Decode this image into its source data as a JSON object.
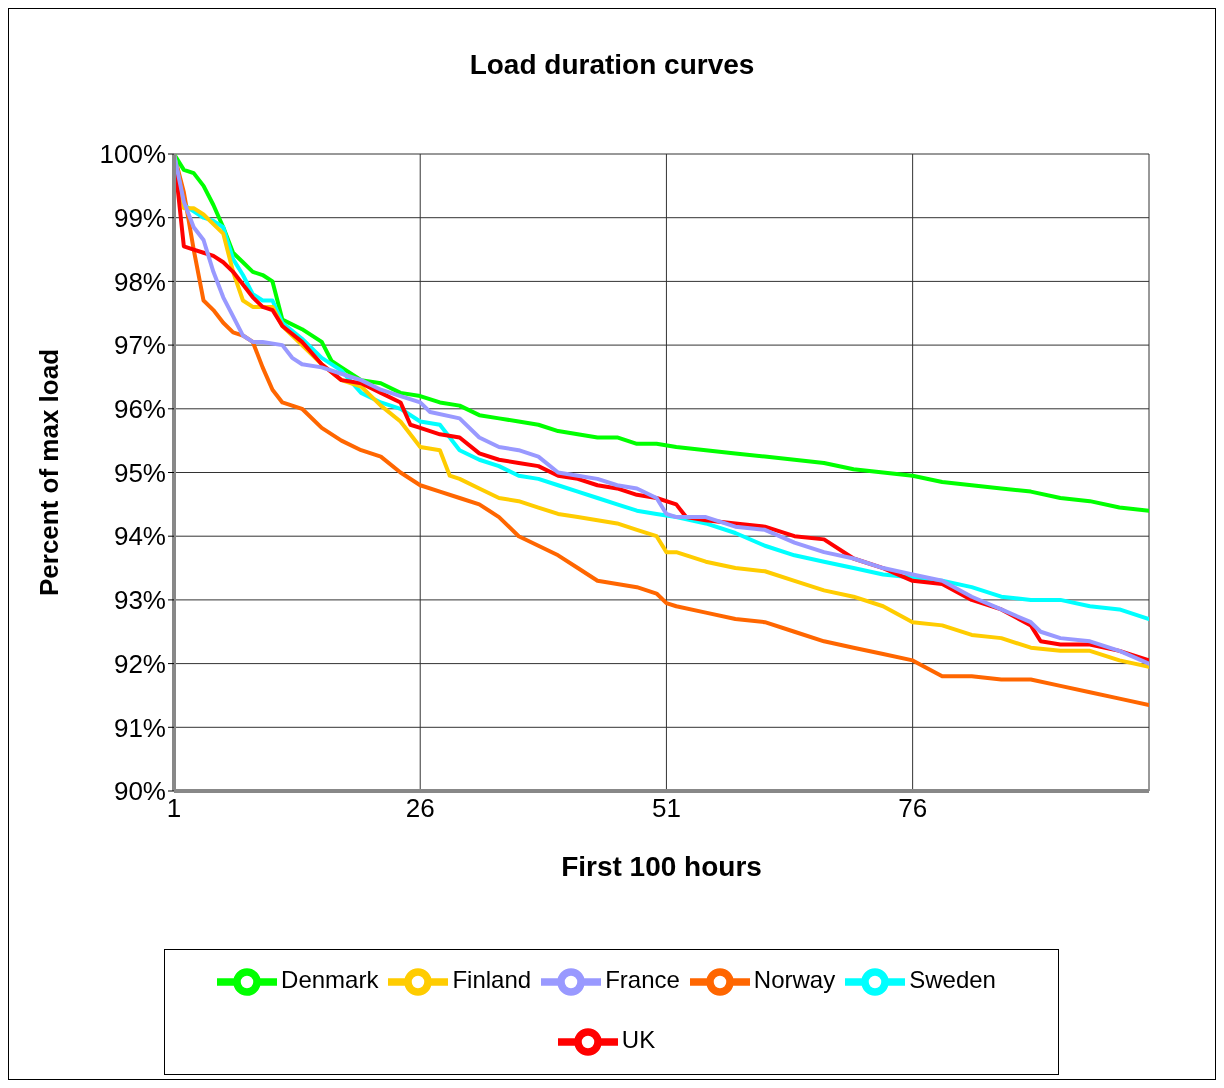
{
  "chart_data": {
    "type": "line",
    "title": "Load duration curves",
    "xlabel": "First 100 hours",
    "ylabel": "Percent of max load",
    "xlim": [
      1,
      100
    ],
    "xticks": [
      1,
      26,
      51,
      76
    ],
    "ylim": [
      90,
      100
    ],
    "yticks": [
      {
        "value": 90,
        "label": "90%"
      },
      {
        "value": 91,
        "label": "91%"
      },
      {
        "value": 92,
        "label": "92%"
      },
      {
        "value": 93,
        "label": "93%"
      },
      {
        "value": 94,
        "label": "94%"
      },
      {
        "value": 95,
        "label": "95%"
      },
      {
        "value": 96,
        "label": "96%"
      },
      {
        "value": 97,
        "label": "97%"
      },
      {
        "value": 98,
        "label": "98%"
      },
      {
        "value": 99,
        "label": "99%"
      },
      {
        "value": 100,
        "label": "100%"
      }
    ],
    "grid": true,
    "legend": "bottom",
    "marker": "none",
    "line_style": "solid",
    "series": [
      {
        "name": "Norway",
        "color": "#ff6600",
        "x": [
          1,
          2,
          3,
          4,
          5,
          6,
          7,
          8,
          9,
          10,
          11,
          12,
          14,
          16,
          18,
          20,
          22,
          24,
          26,
          28,
          30,
          32,
          34,
          36,
          38,
          40,
          42,
          44,
          46,
          48,
          50,
          51,
          52,
          55,
          58,
          61,
          64,
          67,
          70,
          73,
          76,
          79,
          82,
          85,
          88,
          91,
          94,
          97,
          100
        ],
        "values": [
          100,
          99.4,
          98.5,
          97.7,
          97.55,
          97.35,
          97.2,
          97.15,
          97.05,
          96.65,
          96.3,
          96.1,
          96.0,
          95.7,
          95.5,
          95.35,
          95.25,
          95.0,
          94.8,
          94.7,
          94.6,
          94.5,
          94.3,
          94.0,
          93.85,
          93.7,
          93.5,
          93.3,
          93.25,
          93.2,
          93.1,
          92.95,
          92.9,
          92.8,
          92.7,
          92.65,
          92.5,
          92.35,
          92.25,
          92.15,
          92.05,
          91.8,
          91.8,
          91.75,
          91.75,
          91.65,
          91.55,
          91.45,
          91.35
        ]
      },
      {
        "name": "Denmark",
        "color": "#00ff00",
        "x": [
          1,
          2,
          3,
          4,
          5,
          6,
          7,
          8,
          9,
          10,
          11,
          12,
          14,
          16,
          17,
          18,
          20,
          22,
          24,
          26,
          28,
          30,
          32,
          34,
          36,
          38,
          40,
          42,
          44,
          46,
          48,
          50,
          52,
          55,
          58,
          61,
          64,
          67,
          70,
          73,
          76,
          79,
          82,
          85,
          88,
          91,
          94,
          97,
          100
        ],
        "values": [
          100,
          99.75,
          99.7,
          99.5,
          99.2,
          98.85,
          98.45,
          98.3,
          98.15,
          98.1,
          98.0,
          97.4,
          97.25,
          97.05,
          96.75,
          96.65,
          96.45,
          96.4,
          96.25,
          96.2,
          96.1,
          96.05,
          95.9,
          95.85,
          95.8,
          95.75,
          95.65,
          95.6,
          95.55,
          95.55,
          95.45,
          95.45,
          95.4,
          95.35,
          95.3,
          95.25,
          95.2,
          95.15,
          95.05,
          95.0,
          94.95,
          94.85,
          94.8,
          94.75,
          94.7,
          94.6,
          94.55,
          94.45,
          94.4
        ]
      },
      {
        "name": "Sweden",
        "color": "#00ffff",
        "x": [
          1,
          2,
          3,
          4,
          5,
          6,
          7,
          8,
          9,
          10,
          11,
          12,
          14,
          16,
          18,
          20,
          22,
          24,
          26,
          28,
          30,
          32,
          34,
          36,
          38,
          40,
          42,
          44,
          46,
          48,
          50,
          52,
          55,
          58,
          61,
          64,
          67,
          70,
          73,
          76,
          79,
          82,
          85,
          88,
          91,
          94,
          97,
          100
        ],
        "values": [
          100,
          99.2,
          99.1,
          99.0,
          98.95,
          98.85,
          98.35,
          98.1,
          97.8,
          97.7,
          97.7,
          97.35,
          97.1,
          96.8,
          96.6,
          96.25,
          96.1,
          96.0,
          95.8,
          95.75,
          95.35,
          95.2,
          95.1,
          94.95,
          94.9,
          94.8,
          94.7,
          94.6,
          94.5,
          94.4,
          94.35,
          94.3,
          94.2,
          94.05,
          93.85,
          93.7,
          93.6,
          93.5,
          93.4,
          93.35,
          93.3,
          93.2,
          93.05,
          93.0,
          93.0,
          92.9,
          92.85,
          92.7
        ]
      },
      {
        "name": "Finland",
        "color": "#ffcc00",
        "x": [
          1,
          2,
          3,
          4,
          5,
          6,
          7,
          8,
          9,
          10,
          11,
          12,
          14,
          16,
          18,
          20,
          22,
          24,
          26,
          28,
          29,
          30,
          32,
          34,
          36,
          38,
          40,
          42,
          44,
          46,
          48,
          50,
          51,
          52,
          55,
          58,
          61,
          64,
          67,
          70,
          73,
          76,
          79,
          82,
          85,
          88,
          91,
          94,
          97,
          100
        ],
        "values": [
          100,
          99.15,
          99.15,
          99.05,
          98.9,
          98.75,
          98.15,
          97.7,
          97.6,
          97.6,
          97.6,
          97.3,
          97.0,
          96.7,
          96.45,
          96.35,
          96.05,
          95.8,
          95.4,
          95.35,
          94.95,
          94.9,
          94.75,
          94.6,
          94.55,
          94.45,
          94.35,
          94.3,
          94.25,
          94.2,
          94.1,
          94.0,
          93.75,
          93.75,
          93.6,
          93.5,
          93.45,
          93.3,
          93.15,
          93.05,
          92.9,
          92.65,
          92.6,
          92.45,
          92.4,
          92.25,
          92.2,
          92.2,
          92.05,
          91.95
        ]
      },
      {
        "name": "UK",
        "color": "#ff0000",
        "x": [
          1,
          2,
          3,
          4,
          5,
          6,
          7,
          8,
          9,
          10,
          11,
          12,
          14,
          16,
          18,
          20,
          22,
          24,
          25,
          26,
          28,
          30,
          32,
          34,
          36,
          38,
          40,
          42,
          44,
          46,
          48,
          50,
          52,
          53,
          55,
          58,
          61,
          64,
          67,
          70,
          73,
          76,
          79,
          82,
          85,
          88,
          89,
          91,
          94,
          97,
          100
        ],
        "values": [
          100,
          98.55,
          98.5,
          98.45,
          98.4,
          98.3,
          98.15,
          97.95,
          97.75,
          97.6,
          97.55,
          97.3,
          97.05,
          96.7,
          96.45,
          96.4,
          96.25,
          96.1,
          95.75,
          95.7,
          95.6,
          95.55,
          95.3,
          95.2,
          95.15,
          95.1,
          94.95,
          94.9,
          94.8,
          94.75,
          94.65,
          94.6,
          94.5,
          94.3,
          94.25,
          94.2,
          94.15,
          94.0,
          93.95,
          93.65,
          93.5,
          93.3,
          93.25,
          93.0,
          92.85,
          92.6,
          92.35,
          92.3,
          92.3,
          92.2,
          92.05
        ]
      },
      {
        "name": "France",
        "color": "#9999ff",
        "x": [
          1,
          2,
          3,
          4,
          5,
          6,
          7,
          8,
          9,
          10,
          12,
          13,
          14,
          16,
          18,
          20,
          22,
          24,
          26,
          27,
          30,
          32,
          34,
          36,
          38,
          40,
          42,
          44,
          46,
          48,
          50,
          51,
          52,
          55,
          58,
          61,
          64,
          67,
          70,
          73,
          76,
          79,
          82,
          85,
          88,
          89,
          91,
          94,
          97,
          100
        ],
        "values": [
          100,
          99.25,
          98.85,
          98.65,
          98.15,
          97.75,
          97.45,
          97.15,
          97.05,
          97.05,
          97.0,
          96.8,
          96.7,
          96.65,
          96.55,
          96.45,
          96.3,
          96.2,
          96.1,
          95.95,
          95.85,
          95.55,
          95.4,
          95.35,
          95.25,
          95.0,
          94.95,
          94.9,
          94.8,
          94.75,
          94.6,
          94.35,
          94.3,
          94.3,
          94.15,
          94.1,
          93.9,
          93.75,
          93.65,
          93.5,
          93.4,
          93.3,
          93.05,
          92.85,
          92.65,
          92.5,
          92.4,
          92.35,
          92.2,
          92.0
        ]
      }
    ]
  }
}
